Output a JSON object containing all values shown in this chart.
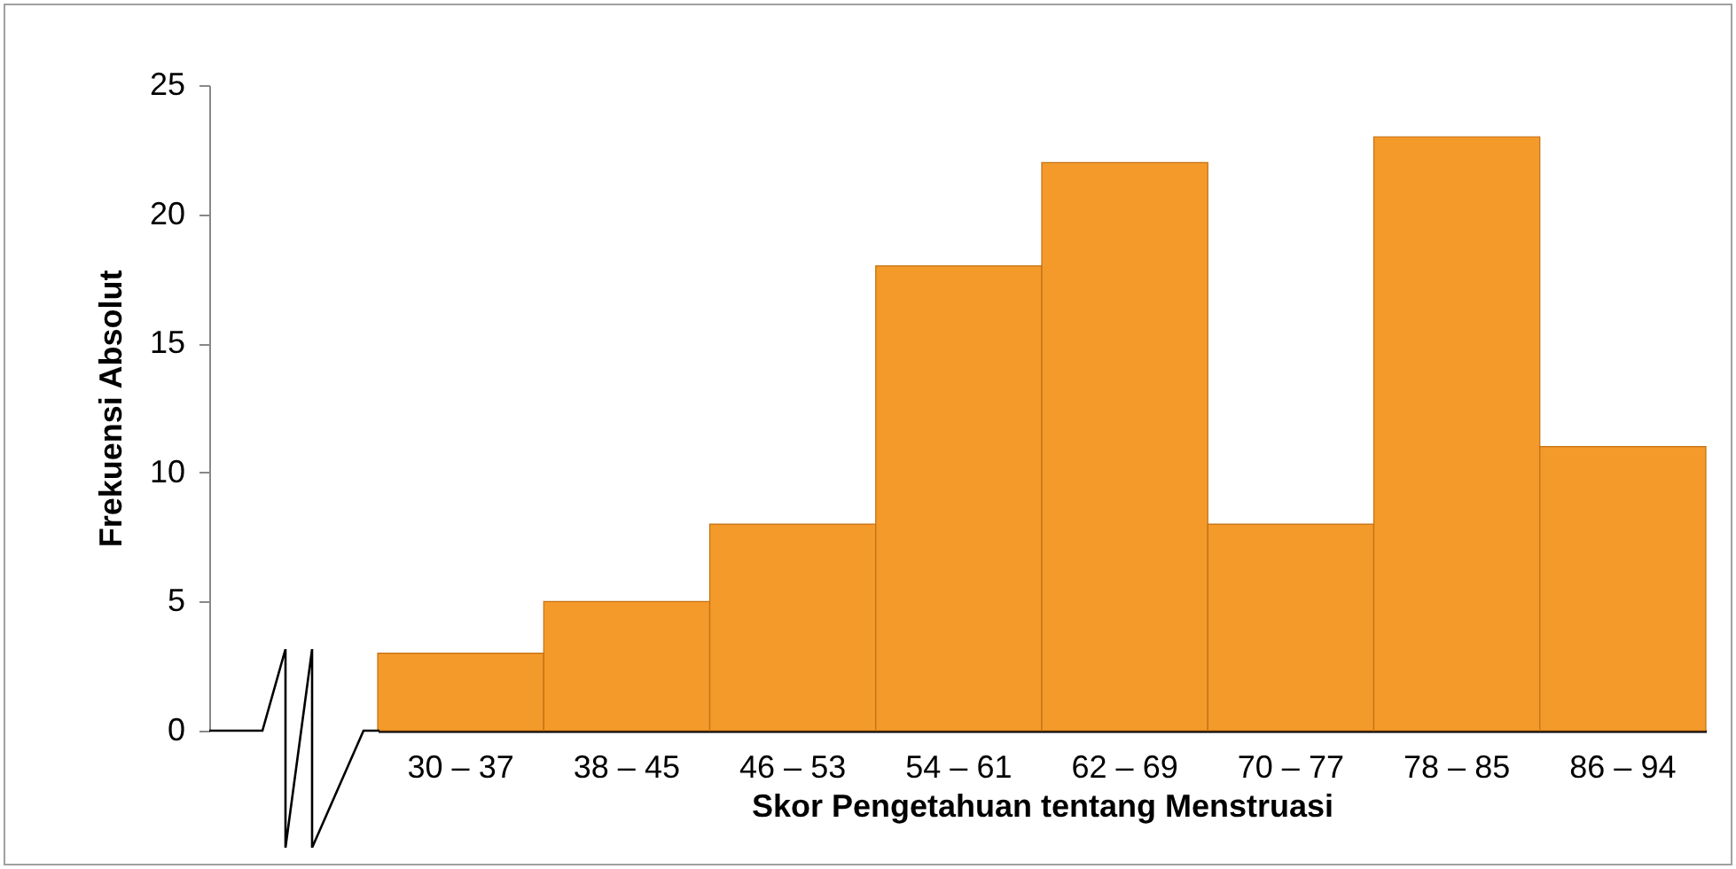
{
  "chart_data": {
    "type": "bar",
    "xlabel": "Skor Pengetahuan tentang Menstruasi",
    "ylabel": "Frekuensi Absolut",
    "categories": [
      "30 – 37",
      "38 – 45",
      "46 – 53",
      "54 – 61",
      "62 – 69",
      "70 – 77",
      "78 – 85",
      "86 – 94"
    ],
    "values": [
      3,
      5,
      8,
      18,
      22,
      8,
      23,
      11
    ],
    "color": "#f39a2b",
    "ylim": [
      0,
      25
    ],
    "yticks": [
      0,
      5,
      10,
      15,
      20,
      25
    ],
    "grid": false
  }
}
